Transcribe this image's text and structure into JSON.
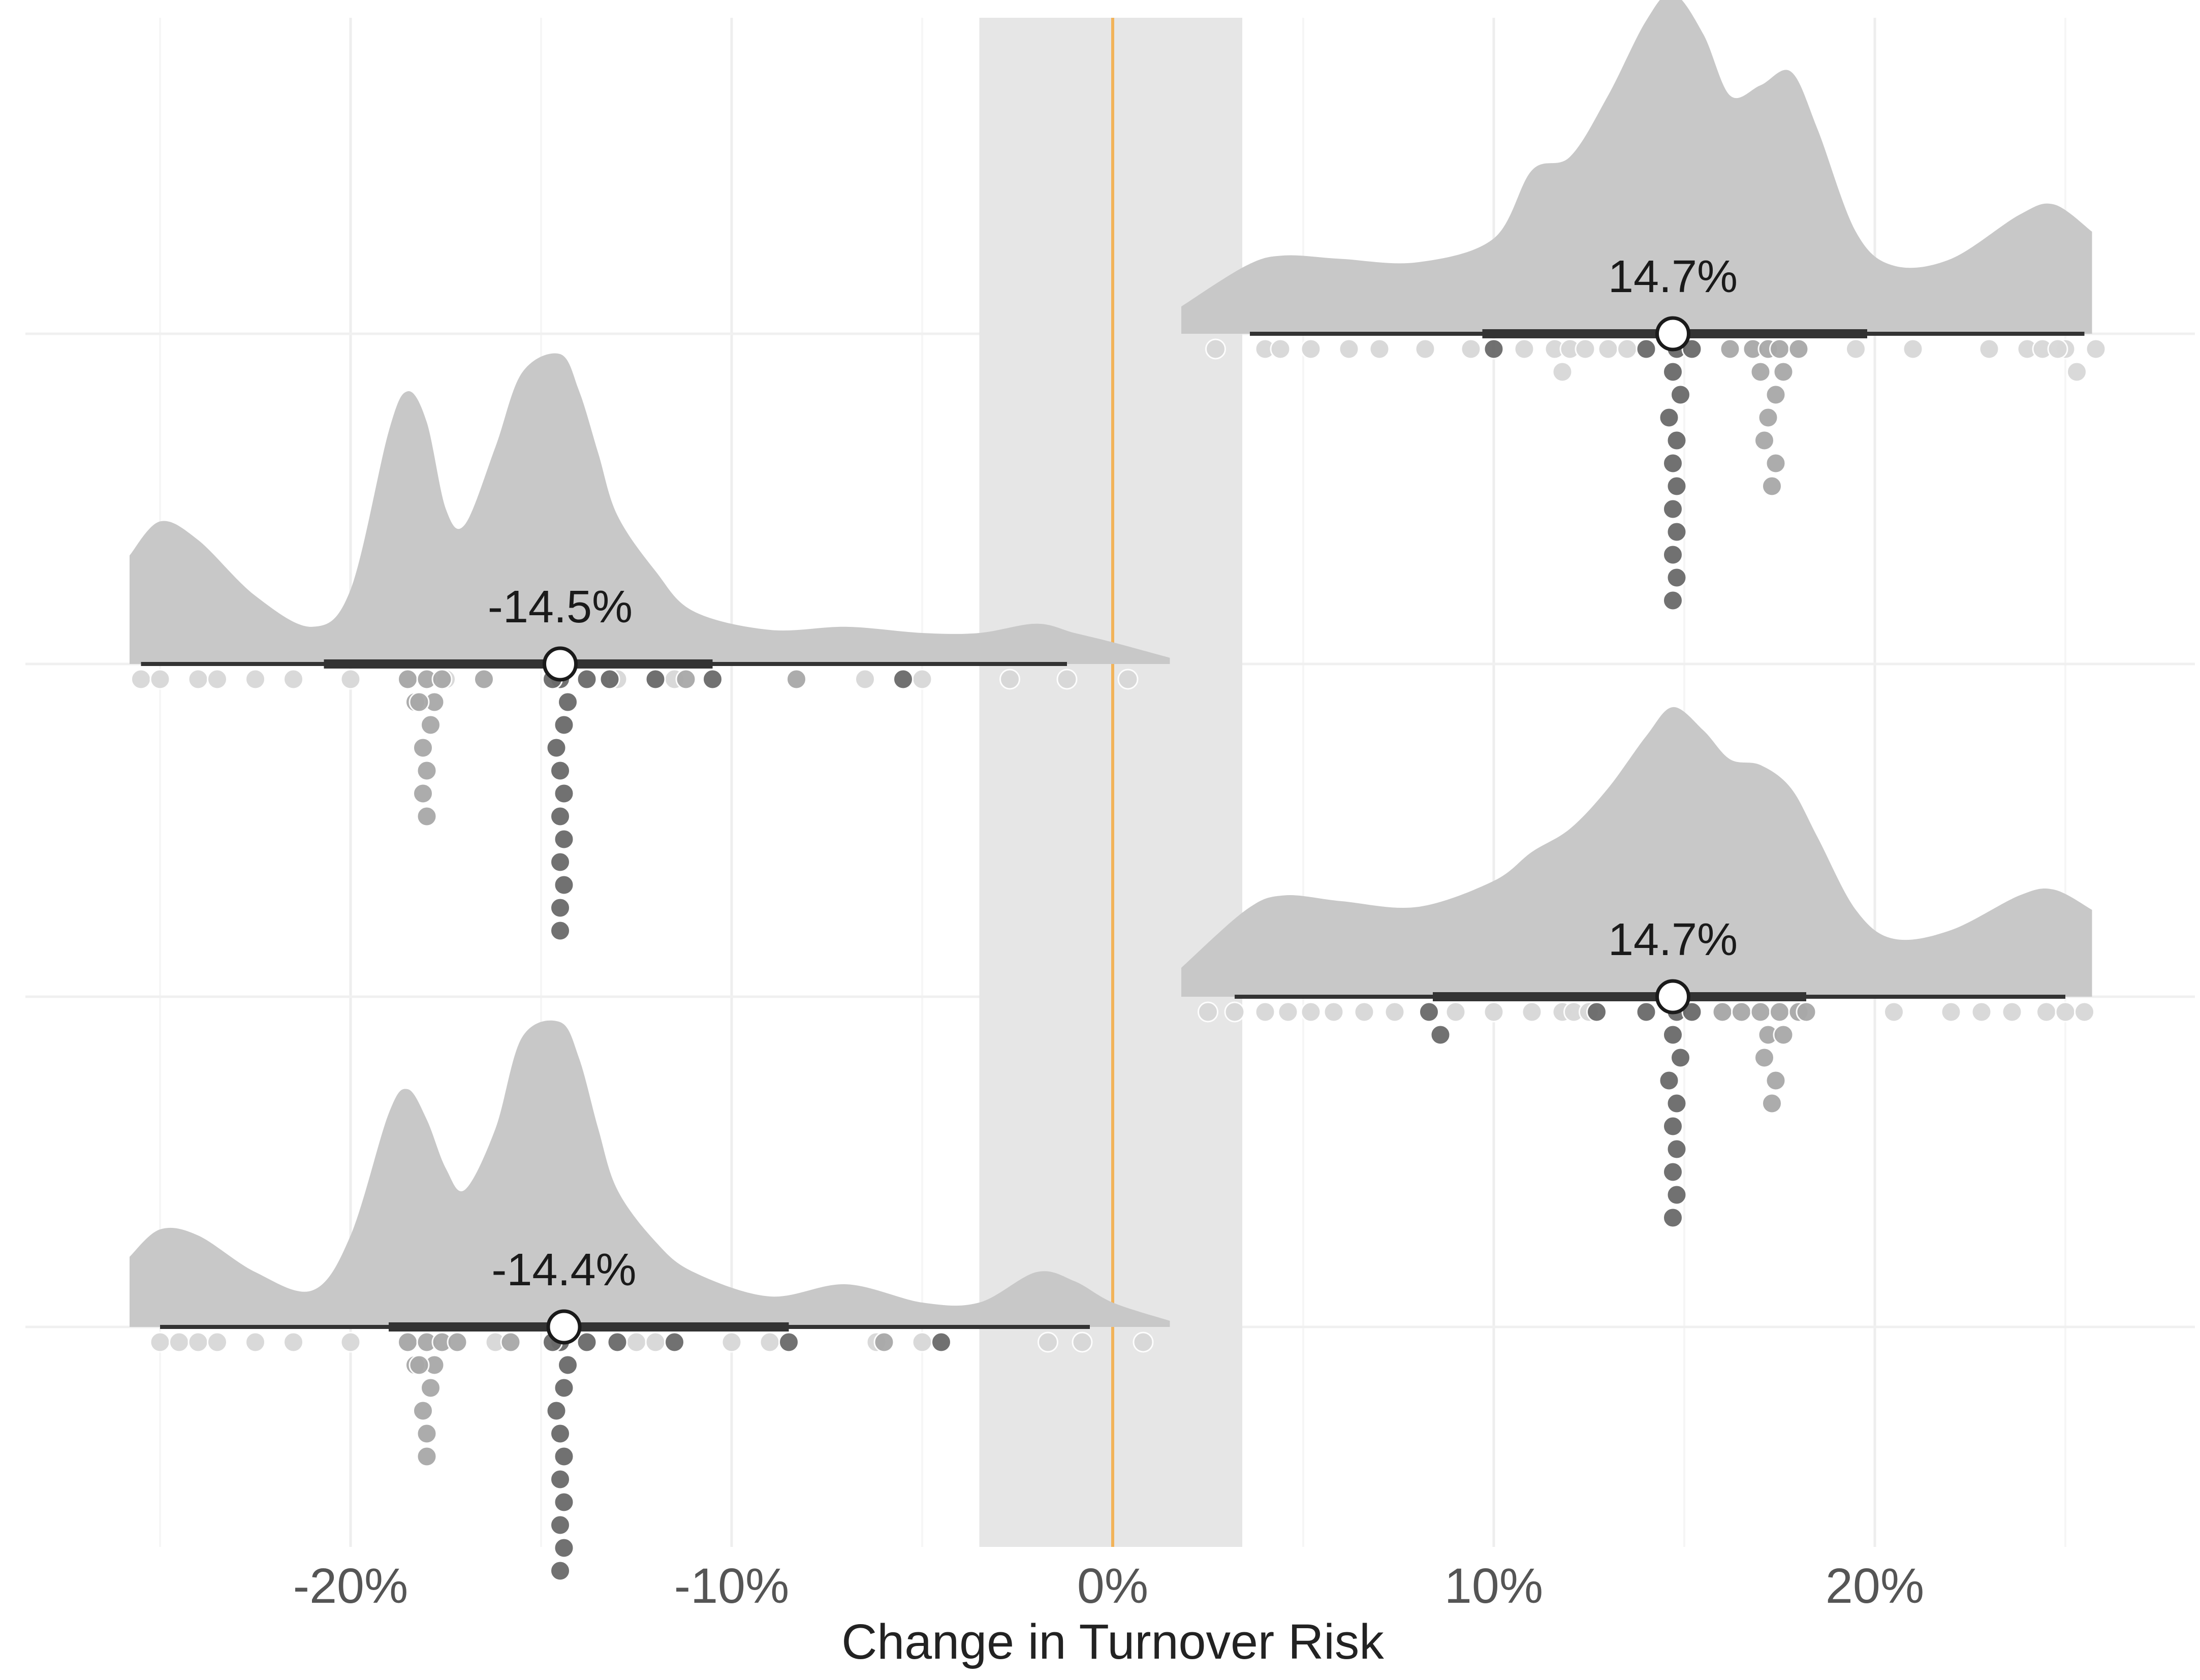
{
  "chart_data": {
    "type": "halfeye-dotplot",
    "xlabel": "Change in Turnover Risk",
    "x_ticks": [
      -0.2,
      -0.1,
      0,
      0.1,
      0.2
    ],
    "x_tick_labels": [
      "-20%",
      "-10%",
      "0%",
      "10%",
      "20%"
    ],
    "xlim": [
      -0.26,
      0.28
    ],
    "grid": true,
    "colors": {
      "density_fill": "#c8c8c8",
      "rope_band": "#e6e6e6",
      "zero_line": "#f2b35a",
      "interval": "#333333",
      "point_fill": "#ffffff",
      "point_stroke": "#1a1a1a",
      "dot_dark": "#6a6a6a",
      "dot_mid": "#a8a8a8",
      "dot_light": "#d8d8d8"
    },
    "rope": [
      -0.035,
      0.034
    ],
    "reference_line": 0,
    "panels": [
      {
        "estimate": 0.147,
        "estimate_label": "14.7%",
        "interval_66": [
          0.097,
          0.198
        ],
        "interval_95": [
          0.036,
          0.255
        ],
        "density": {
          "x": [
            0.018,
            0.035,
            0.045,
            0.06,
            0.08,
            0.1,
            0.11,
            0.12,
            0.13,
            0.14,
            0.147,
            0.155,
            0.162,
            0.17,
            0.178,
            0.185,
            0.195,
            0.205,
            0.22,
            0.238,
            0.247,
            0.257
          ],
          "y": [
            0.08,
            0.2,
            0.23,
            0.22,
            0.21,
            0.28,
            0.48,
            0.52,
            0.7,
            0.92,
            1.0,
            0.88,
            0.7,
            0.73,
            0.77,
            0.6,
            0.3,
            0.2,
            0.22,
            0.35,
            0.38,
            0.3
          ]
        },
        "dots": {
          "dark": [
            0.1,
            0.14,
            0.148,
            0.152,
            0.147,
            0.149,
            0.146,
            0.148,
            0.147,
            0.148,
            0.147,
            0.148,
            0.147,
            0.148,
            0.147
          ],
          "mid": [
            0.162,
            0.168,
            0.172,
            0.175,
            0.17,
            0.174,
            0.172,
            0.176,
            0.171,
            0.174,
            0.173,
            0.18
          ],
          "light": [
            0.027,
            0.04,
            0.044,
            0.052,
            0.062,
            0.07,
            0.082,
            0.094,
            0.108,
            0.116,
            0.12,
            0.118,
            0.124,
            0.13,
            0.135,
            0.195,
            0.21,
            0.23,
            0.24,
            0.25,
            0.244,
            0.253,
            0.248,
            0.258
          ]
        }
      },
      {
        "estimate": -0.145,
        "estimate_label": "-14.5%",
        "interval_66": [
          -0.207,
          -0.105
        ],
        "interval_95": [
          -0.255,
          -0.012
        ],
        "density": {
          "x": [
            -0.258,
            -0.25,
            -0.24,
            -0.225,
            -0.21,
            -0.2,
            -0.19,
            -0.185,
            -0.18,
            -0.175,
            -0.17,
            -0.162,
            -0.155,
            -0.145,
            -0.14,
            -0.135,
            -0.13,
            -0.12,
            -0.11,
            -0.09,
            -0.07,
            -0.05,
            -0.035,
            -0.02,
            -0.01,
            0.0,
            0.015
          ],
          "y": [
            0.35,
            0.46,
            0.4,
            0.22,
            0.12,
            0.24,
            0.75,
            0.88,
            0.78,
            0.5,
            0.45,
            0.7,
            0.94,
            1.0,
            0.88,
            0.68,
            0.48,
            0.3,
            0.17,
            0.11,
            0.12,
            0.1,
            0.1,
            0.13,
            0.1,
            0.07,
            0.02
          ]
        },
        "dots": {
          "dark": [
            -0.145,
            -0.143,
            -0.147,
            -0.144,
            -0.146,
            -0.145,
            -0.144,
            -0.145,
            -0.144,
            -0.145,
            -0.144,
            -0.145,
            -0.145,
            -0.138,
            -0.132,
            -0.12,
            -0.105,
            -0.055
          ],
          "mid": [
            -0.185,
            -0.18,
            -0.176,
            -0.183,
            -0.178,
            -0.182,
            -0.179,
            -0.181,
            -0.18,
            -0.181,
            -0.18,
            -0.165,
            -0.112,
            -0.083
          ],
          "light": [
            -0.255,
            -0.25,
            -0.24,
            -0.235,
            -0.225,
            -0.215,
            -0.2,
            -0.185,
            -0.175,
            -0.132,
            -0.13,
            -0.12,
            -0.115,
            -0.065,
            -0.05,
            -0.027,
            -0.012,
            0.004
          ]
        }
      },
      {
        "estimate": 0.147,
        "estimate_label": "14.7%",
        "interval_66": [
          0.084,
          0.182
        ],
        "interval_95": [
          0.032,
          0.25
        ],
        "density": {
          "x": [
            0.018,
            0.035,
            0.045,
            0.06,
            0.08,
            0.1,
            0.11,
            0.12,
            0.13,
            0.14,
            0.147,
            0.155,
            0.162,
            0.17,
            0.178,
            0.185,
            0.195,
            0.205,
            0.22,
            0.238,
            0.247,
            0.257
          ],
          "y": [
            0.1,
            0.3,
            0.35,
            0.33,
            0.31,
            0.4,
            0.5,
            0.58,
            0.72,
            0.9,
            1.0,
            0.92,
            0.82,
            0.8,
            0.72,
            0.55,
            0.3,
            0.2,
            0.23,
            0.35,
            0.37,
            0.3
          ]
        },
        "dots": {
          "dark": [
            0.083,
            0.086,
            0.127,
            0.14,
            0.148,
            0.152,
            0.147,
            0.149,
            0.146,
            0.148,
            0.147,
            0.148,
            0.147,
            0.148,
            0.147
          ],
          "mid": [
            0.16,
            0.165,
            0.17,
            0.175,
            0.172,
            0.176,
            0.171,
            0.174,
            0.173,
            0.18,
            0.182
          ],
          "light": [
            0.025,
            0.032,
            0.04,
            0.046,
            0.052,
            0.058,
            0.066,
            0.074,
            0.09,
            0.1,
            0.11,
            0.118,
            0.121,
            0.125,
            0.16,
            0.205,
            0.22,
            0.228,
            0.236,
            0.245,
            0.25,
            0.255
          ]
        }
      },
      {
        "estimate": -0.144,
        "estimate_label": "-14.4%",
        "interval_66": [
          -0.19,
          -0.085
        ],
        "interval_95": [
          -0.25,
          -0.006
        ],
        "density": {
          "x": [
            -0.258,
            -0.25,
            -0.24,
            -0.225,
            -0.21,
            -0.2,
            -0.19,
            -0.185,
            -0.18,
            -0.175,
            -0.17,
            -0.162,
            -0.155,
            -0.145,
            -0.14,
            -0.135,
            -0.13,
            -0.12,
            -0.11,
            -0.09,
            -0.07,
            -0.05,
            -0.035,
            -0.02,
            -0.01,
            0.0,
            0.015
          ],
          "y": [
            0.23,
            0.32,
            0.3,
            0.18,
            0.12,
            0.3,
            0.7,
            0.78,
            0.68,
            0.52,
            0.45,
            0.65,
            0.95,
            1.0,
            0.88,
            0.65,
            0.45,
            0.28,
            0.18,
            0.1,
            0.14,
            0.08,
            0.08,
            0.18,
            0.15,
            0.08,
            0.02
          ]
        },
        "dots": {
          "dark": [
            -0.145,
            -0.143,
            -0.147,
            -0.144,
            -0.146,
            -0.145,
            -0.144,
            -0.145,
            -0.144,
            -0.145,
            -0.144,
            -0.145,
            -0.138,
            -0.13,
            -0.115,
            -0.085,
            -0.045
          ],
          "mid": [
            -0.185,
            -0.18,
            -0.176,
            -0.183,
            -0.178,
            -0.182,
            -0.179,
            -0.181,
            -0.18,
            -0.18,
            -0.172,
            -0.158,
            -0.06
          ],
          "light": [
            -0.25,
            -0.245,
            -0.24,
            -0.235,
            -0.225,
            -0.215,
            -0.2,
            -0.185,
            -0.162,
            -0.125,
            -0.12,
            -0.1,
            -0.09,
            -0.062,
            -0.05,
            -0.017,
            -0.008,
            0.008
          ]
        }
      }
    ]
  }
}
